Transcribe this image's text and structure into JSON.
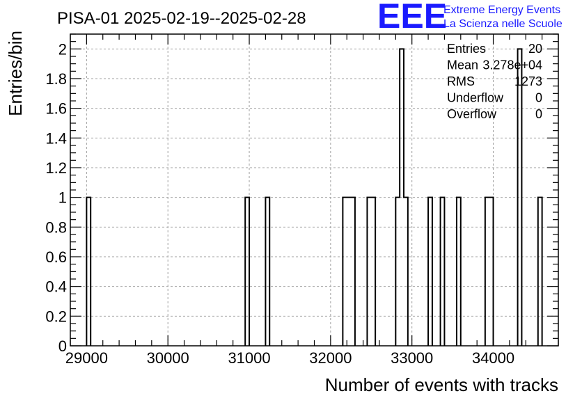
{
  "chart_data": {
    "type": "histogram",
    "title": "PISA-01 2025-02-19--2025-02-28",
    "xlabel": "Number of events with tracks",
    "ylabel": "Entries/bin",
    "xlim": [
      28800,
      34800
    ],
    "ylim": [
      0,
      2.1
    ],
    "bin_width": 50,
    "grid": true,
    "x_ticks": [
      29000,
      30000,
      31000,
      32000,
      33000,
      34000
    ],
    "x_tick_labels": [
      "29000",
      "30000",
      "31000",
      "32000",
      "33000",
      "34000"
    ],
    "y_ticks": [
      0,
      0.2,
      0.4,
      0.6,
      0.8,
      1,
      1.2,
      1.4,
      1.6,
      1.8,
      2
    ],
    "y_tick_labels": [
      "0",
      "0.2",
      "0.4",
      "0.6",
      "0.8",
      "1",
      "1.2",
      "1.4",
      "1.6",
      "1.8",
      "2"
    ],
    "bins": [
      {
        "x": 29000,
        "count": 1
      },
      {
        "x": 30950,
        "count": 1
      },
      {
        "x": 31200,
        "count": 1
      },
      {
        "x": 32150,
        "count": 1
      },
      {
        "x": 32200,
        "count": 1
      },
      {
        "x": 32250,
        "count": 1
      },
      {
        "x": 32450,
        "count": 1
      },
      {
        "x": 32500,
        "count": 1
      },
      {
        "x": 32800,
        "count": 1
      },
      {
        "x": 32850,
        "count": 2
      },
      {
        "x": 32900,
        "count": 1
      },
      {
        "x": 33200,
        "count": 1
      },
      {
        "x": 33350,
        "count": 1
      },
      {
        "x": 33550,
        "count": 1
      },
      {
        "x": 33900,
        "count": 1
      },
      {
        "x": 33950,
        "count": 1
      },
      {
        "x": 34300,
        "count": 2
      },
      {
        "x": 34550,
        "count": 1
      }
    ],
    "stats": [
      {
        "label": "Entries",
        "value": "20"
      },
      {
        "label": "Mean",
        "value": "3.278e+04"
      },
      {
        "label": "RMS",
        "value": "1273"
      },
      {
        "label": "Underflow",
        "value": "0"
      },
      {
        "label": "Overflow",
        "value": "0"
      }
    ]
  },
  "logo": {
    "mark": "EEE",
    "line1": "Extreme Energy Events",
    "line2": "La Scienza nelle Scuole"
  },
  "colors": {
    "histogram": "#000000",
    "logo": "#1a1aff",
    "grid": "#a0a0a0"
  }
}
